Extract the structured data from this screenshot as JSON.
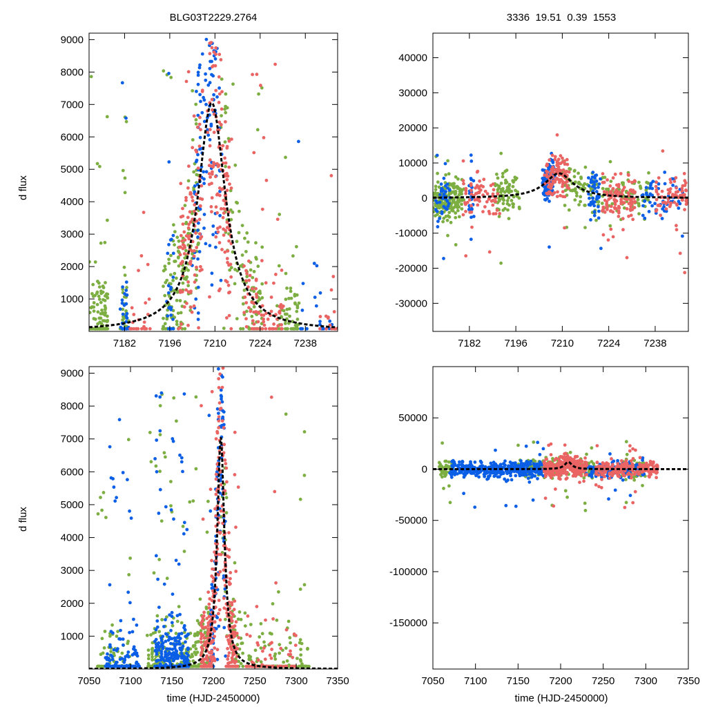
{
  "figure": {
    "title_left": "BLG03T2229.2764",
    "title_right": "3336  19.51  0.39  1553",
    "ylabel": "d flux",
    "xlabel": "time (HJD-2450000)"
  },
  "colors": {
    "green": "#7cae42",
    "blue": "#0b5ee6",
    "red": "#ea6464",
    "model": "#000000",
    "axis": "#000000"
  },
  "chart_data": [
    {
      "type": "scatter",
      "panel": "top-left",
      "title": "BLG03T2229.2764",
      "ylabel": "d flux",
      "xlabel": "",
      "xlim": [
        7171,
        7248
      ],
      "ylim": [
        0,
        9200
      ],
      "xticks": [
        7182,
        7196,
        7210,
        7224,
        7238
      ],
      "yticks": [
        1000,
        2000,
        3000,
        4000,
        5000,
        6000,
        7000,
        8000,
        9000
      ],
      "model": {
        "name": "model fit",
        "style": "dashed",
        "t0": 7209,
        "peak": 7050,
        "tE": 5.2,
        "base": 0
      },
      "series": [
        {
          "name": "green",
          "color": "#7cae42",
          "clusters": [
            [
              7171,
              7177,
              120
            ],
            [
              7181,
              7183,
              40
            ],
            [
              7194,
              7205,
              150
            ],
            [
              7212,
              7225,
              110
            ],
            [
              7229,
              7236,
              60
            ]
          ]
        },
        {
          "name": "blue",
          "color": "#0b5ee6",
          "clusters": [
            [
              7181,
              7183,
              40
            ],
            [
              7195,
              7197,
              25
            ],
            [
              7203,
              7212,
              120
            ],
            [
              7236,
              7246,
              20
            ]
          ]
        },
        {
          "name": "red",
          "color": "#ea6464",
          "clusters": [
            [
              7184,
              7190,
              25
            ],
            [
              7199,
              7206,
              110
            ],
            [
              7208,
              7215,
              140
            ],
            [
              7219,
              7231,
              90
            ],
            [
              7241,
              7248,
              15
            ]
          ]
        }
      ]
    },
    {
      "type": "scatter",
      "panel": "top-right",
      "title": "3336  19.51  0.39  1553",
      "ylabel": "",
      "xlabel": "",
      "xlim": [
        7171,
        7248
      ],
      "ylim": [
        -38000,
        47000
      ],
      "xticks": [
        7182,
        7196,
        7210,
        7224,
        7238
      ],
      "yticks": [
        -30000,
        -20000,
        -10000,
        0,
        10000,
        20000,
        30000,
        40000
      ],
      "model": {
        "name": "model fit",
        "style": "dashed",
        "t0": 7209,
        "peak": 7050,
        "tE": 5.2,
        "base": 0
      },
      "series": [
        {
          "name": "green",
          "color": "#7cae42",
          "clusters": [
            [
              7171,
              7180,
              180
            ],
            [
              7190,
              7197,
              80
            ],
            [
              7210,
              7236,
              160
            ]
          ]
        },
        {
          "name": "blue",
          "color": "#0b5ee6",
          "clusters": [
            [
              7172,
              7176,
              40
            ],
            [
              7182,
              7183,
              30
            ],
            [
              7204,
              7208,
              90
            ],
            [
              7218,
              7222,
              50
            ],
            [
              7234,
              7246,
              60
            ]
          ]
        },
        {
          "name": "red",
          "color": "#ea6464",
          "clusters": [
            [
              7180,
              7191,
              70
            ],
            [
              7205,
              7212,
              120
            ],
            [
              7222,
              7232,
              110
            ],
            [
              7238,
              7248,
              80
            ]
          ]
        }
      ]
    },
    {
      "type": "scatter",
      "panel": "bottom-left",
      "title": "",
      "ylabel": "d flux",
      "xlabel": "time (HJD-2450000)",
      "xlim": [
        7050,
        7350
      ],
      "ylim": [
        0,
        9200
      ],
      "xticks": [
        7050,
        7100,
        7150,
        7200,
        7250,
        7300,
        7350
      ],
      "yticks": [
        1000,
        2000,
        3000,
        4000,
        5000,
        6000,
        7000,
        8000,
        9000
      ],
      "model": {
        "name": "model fit",
        "style": "dashed",
        "t0": 7209,
        "peak": 7050,
        "tE": 5.2,
        "base": 0
      },
      "series": [
        {
          "name": "green",
          "color": "#7cae42",
          "clusters": [
            [
              7060,
              7100,
              80
            ],
            [
              7120,
              7195,
              320
            ],
            [
              7210,
              7315,
              200
            ]
          ]
        },
        {
          "name": "blue",
          "color": "#0b5ee6",
          "clusters": [
            [
              7070,
              7110,
              160
            ],
            [
              7130,
              7170,
              320
            ],
            [
              7195,
              7215,
              120
            ]
          ]
        },
        {
          "name": "red",
          "color": "#ea6464",
          "clusters": [
            [
              7185,
              7230,
              360
            ],
            [
              7240,
              7300,
              70
            ]
          ]
        }
      ]
    },
    {
      "type": "scatter",
      "panel": "bottom-right",
      "title": "",
      "ylabel": "",
      "xlabel": "time (HJD-2450000)",
      "xlim": [
        7050,
        7350
      ],
      "ylim": [
        -195000,
        100000
      ],
      "xticks": [
        7050,
        7100,
        7150,
        7200,
        7250,
        7300,
        7350
      ],
      "yticks": [
        -150000,
        -100000,
        -50000,
        0,
        50000
      ],
      "model": {
        "name": "model fit",
        "style": "dashed",
        "t0": 7209,
        "peak": 7050,
        "tE": 5.2,
        "base": 0
      },
      "series": [
        {
          "name": "green",
          "color": "#7cae42",
          "clusters": [
            [
              7058,
              7075,
              60
            ],
            [
              7150,
              7240,
              200
            ],
            [
              7270,
              7300,
              60
            ]
          ]
        },
        {
          "name": "blue",
          "color": "#0b5ee6",
          "clusters": [
            [
              7070,
              7180,
              380
            ],
            [
              7230,
              7300,
              120
            ]
          ]
        },
        {
          "name": "red",
          "color": "#ea6464",
          "clusters": [
            [
              7180,
              7230,
              300
            ],
            [
              7240,
              7315,
              200
            ]
          ]
        }
      ]
    }
  ]
}
